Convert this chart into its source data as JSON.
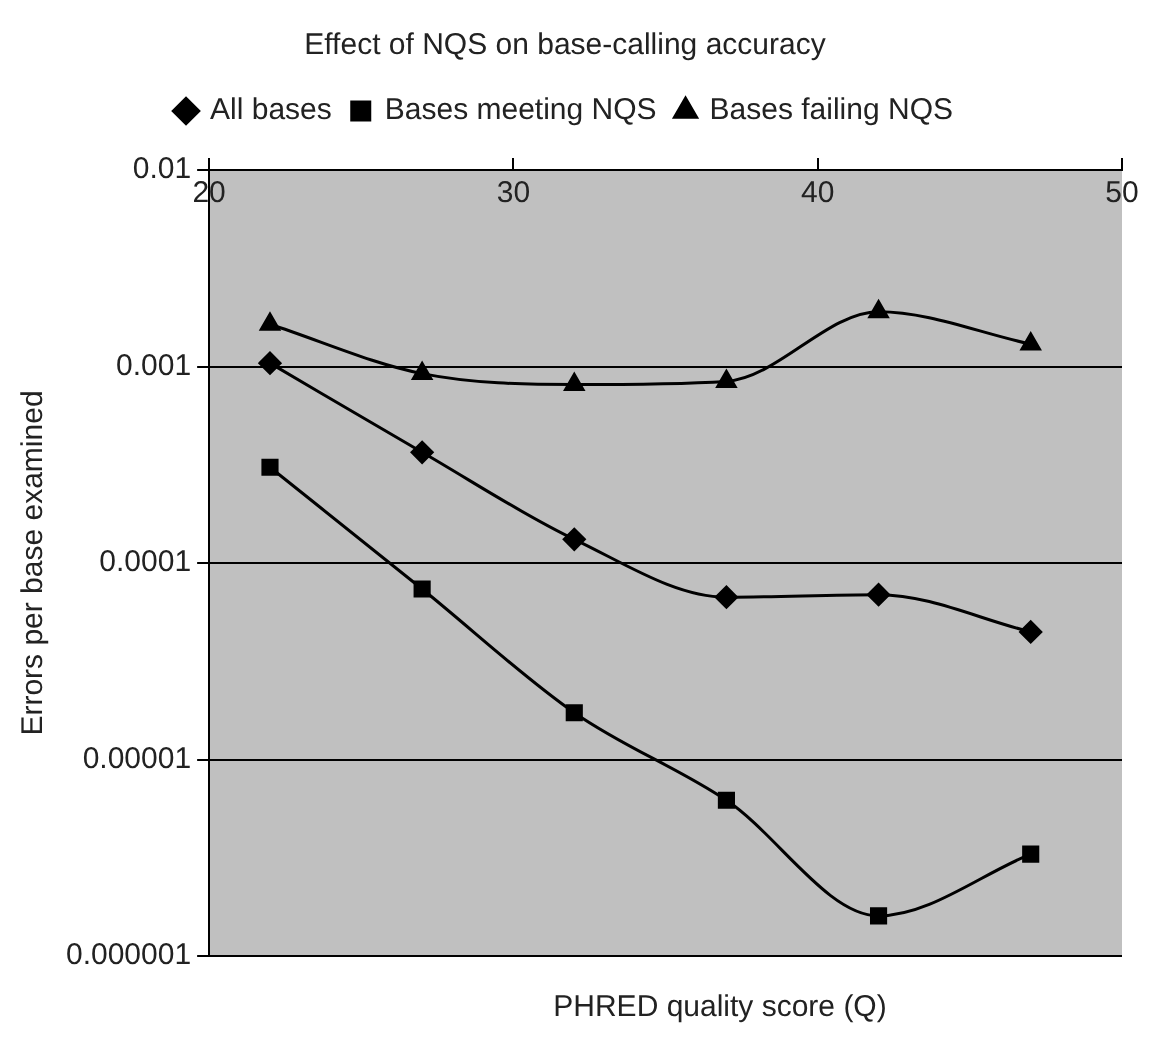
{
  "chart_data": {
    "type": "line",
    "title": "Effect of NQS on base-calling accuracy",
    "xlabel": "PHRED quality score (Q)",
    "ylabel": "Errors per base examined",
    "x": [
      22,
      27,
      32,
      37,
      42,
      47
    ],
    "series": [
      {
        "name": "All bases",
        "color": "#000000",
        "marker": "diamond",
        "values": [
          0.00104,
          0.000366,
          0.000132,
          6.7e-05,
          6.9e-05,
          4.46e-05
        ]
      },
      {
        "name": "Bases meeting NQS",
        "color": "#000000",
        "marker": "square",
        "values": [
          0.000307,
          7.37e-05,
          1.73e-05,
          6.2e-06,
          1.6e-06,
          3.3e-06
        ]
      },
      {
        "name": "Bases failing NQS",
        "color": "#000000",
        "marker": "triangle",
        "values": [
          0.00164,
          0.00092,
          0.00081,
          0.00084,
          0.0019,
          0.0013
        ]
      }
    ],
    "log": "y",
    "xlim": [
      20,
      50
    ],
    "xticks": [
      20,
      30,
      40,
      50
    ],
    "ylim": [
      1e-06,
      0.01
    ],
    "yticks": [
      {
        "value": 1e-06,
        "label": "0.000001"
      },
      {
        "value": 1e-05,
        "label": "0.00001"
      },
      {
        "value": 0.0001,
        "label": "0.0001"
      },
      {
        "value": 0.001,
        "label": "0.001"
      },
      {
        "value": 0.01,
        "label": "0.01"
      }
    ],
    "grid": "y",
    "legend": "top",
    "line_style": "solid"
  }
}
